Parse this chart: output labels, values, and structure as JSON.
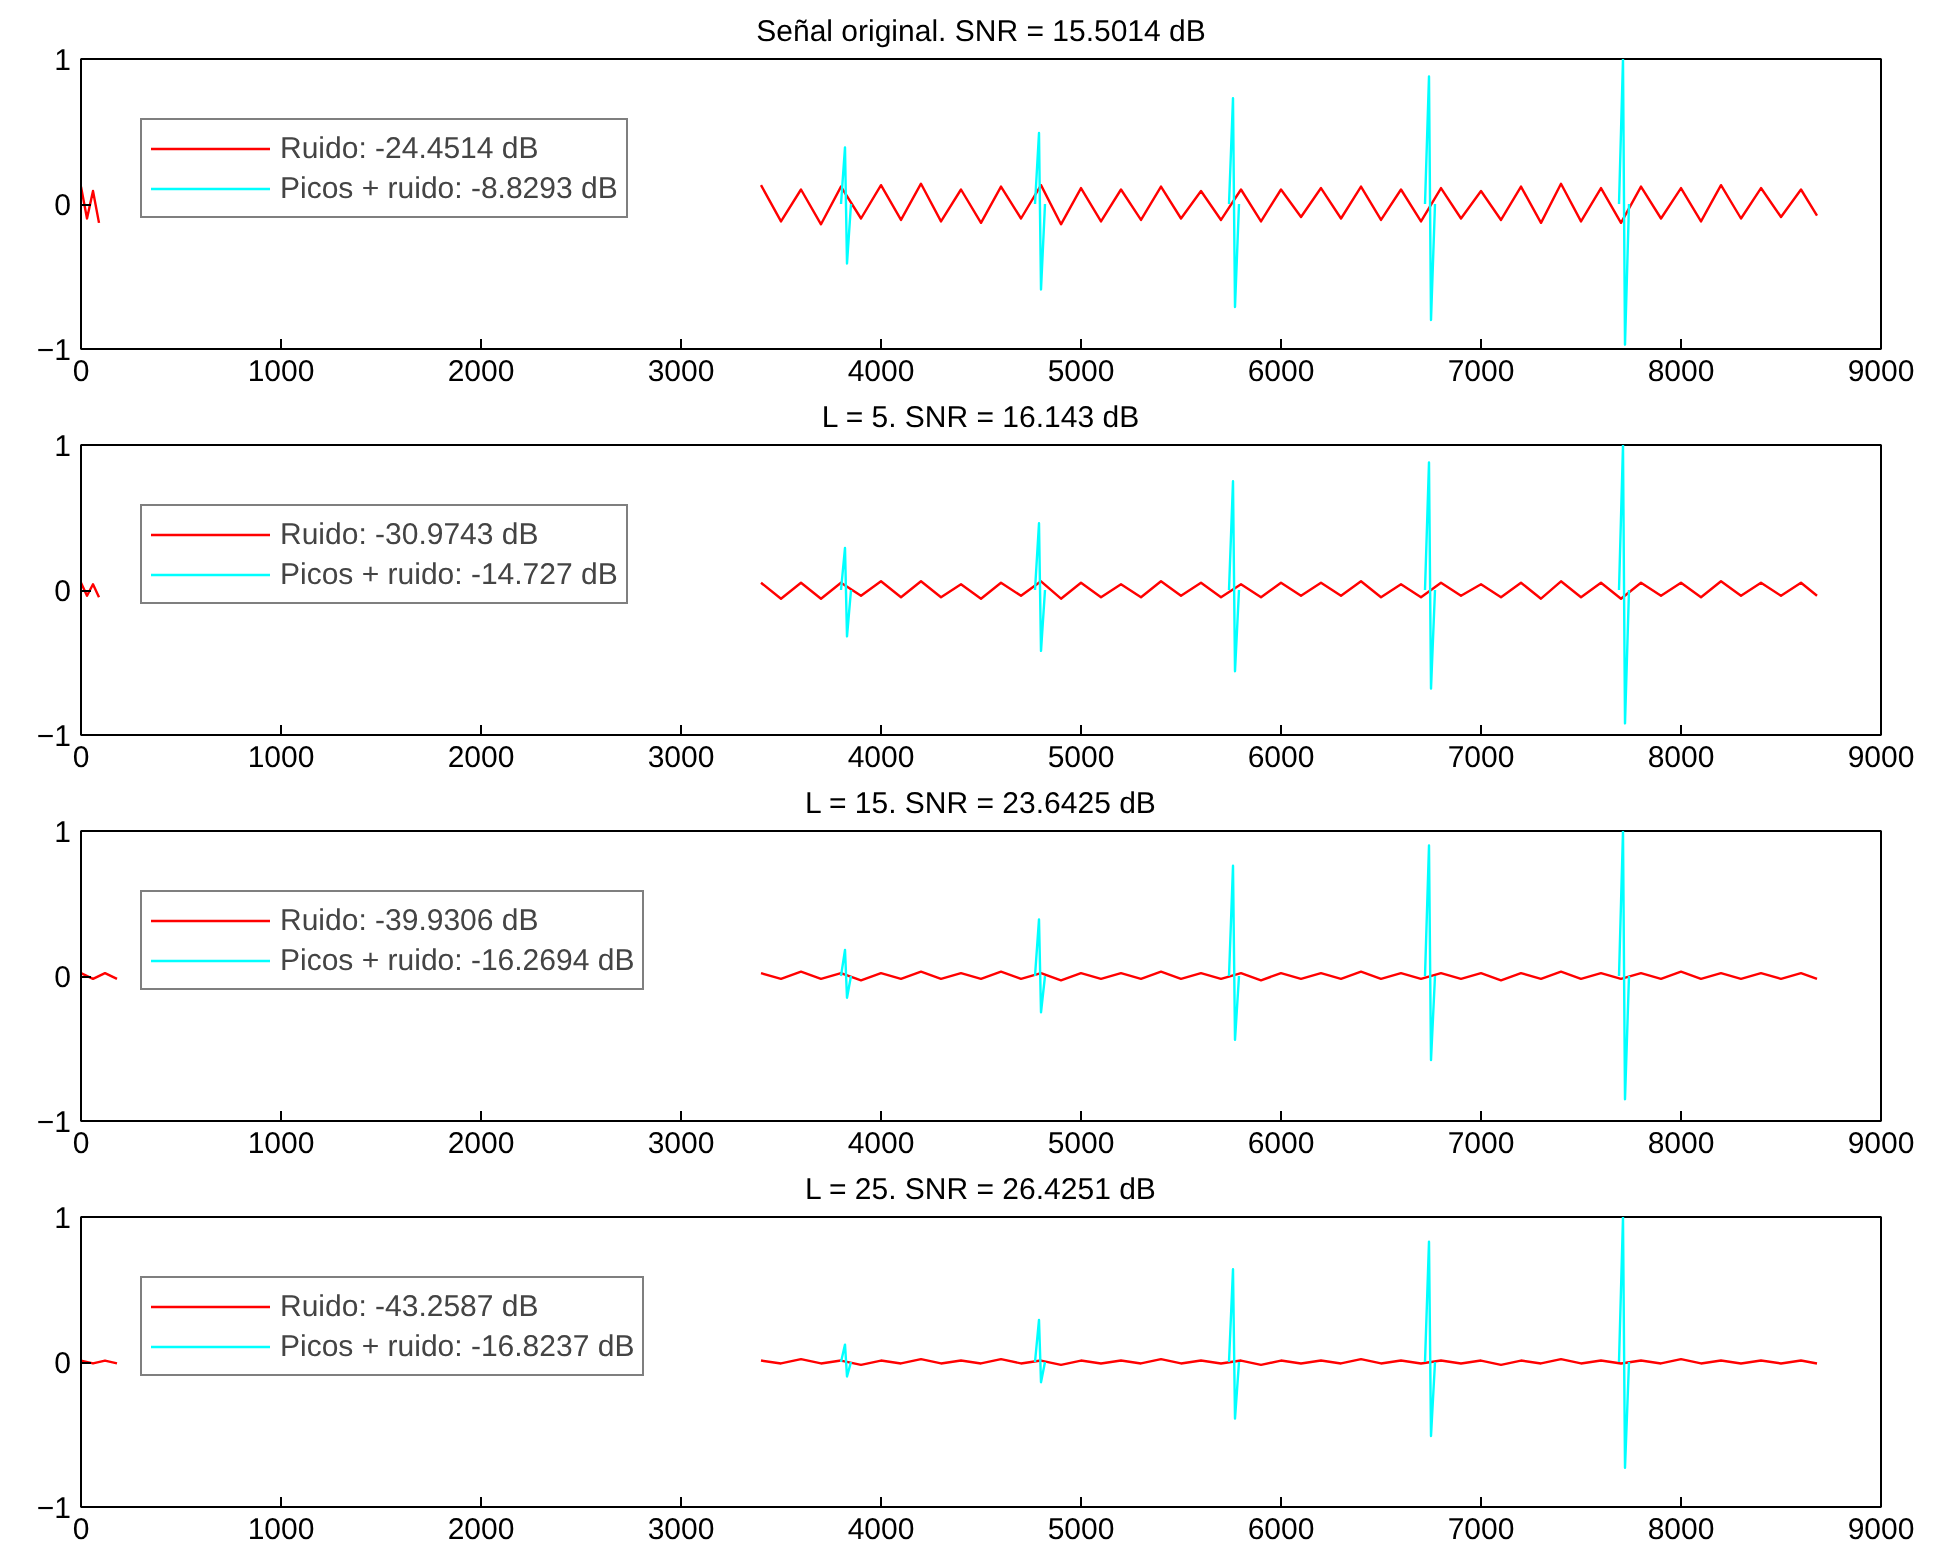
{
  "chart_data": [
    {
      "type": "line",
      "title": "Señal original. SNR = 15.5014 dB",
      "xlim": [
        0,
        9000
      ],
      "xticks": [
        0,
        1000,
        2000,
        3000,
        4000,
        5000,
        6000,
        7000,
        8000,
        9000
      ],
      "ylim": [
        -1,
        1
      ],
      "yticks": [
        -1,
        0,
        1
      ],
      "grid": false,
      "legend": "top left",
      "marker": "none",
      "line_style": "solid",
      "series": [
        {
          "name": "Ruido: -24.4514 dB",
          "color": "#ff0000",
          "x": [
            0,
            30,
            60,
            90,
            120,
            3400,
            3500,
            3600,
            3700,
            3800,
            3900,
            4000,
            4100,
            4200,
            4300,
            4400,
            4500,
            4600,
            4700,
            4800,
            4900,
            5000,
            5100,
            5200,
            5300,
            5400,
            5500,
            5600,
            5700,
            5800,
            5900,
            6000,
            6100,
            6200,
            6300,
            6400,
            6500,
            6600,
            6700,
            6800,
            6900,
            7000,
            7100,
            7200,
            7300,
            7400,
            7500,
            7600,
            7700,
            7800,
            7900,
            8000,
            8100,
            8200,
            8300,
            8400,
            8500,
            8600,
            8680
          ],
          "values": [
            0.12,
            -0.1,
            0.09,
            -0.13,
            null,
            0.13,
            -0.12,
            0.1,
            -0.14,
            0.12,
            -0.1,
            0.13,
            -0.11,
            0.14,
            -0.12,
            0.1,
            -0.13,
            0.12,
            -0.1,
            0.13,
            -0.14,
            0.11,
            -0.12,
            0.1,
            -0.11,
            0.12,
            -0.1,
            0.09,
            -0.11,
            0.1,
            -0.12,
            0.1,
            -0.09,
            0.11,
            -0.1,
            0.12,
            -0.11,
            0.1,
            -0.12,
            0.11,
            -0.1,
            0.09,
            -0.11,
            0.12,
            -0.13,
            0.14,
            -0.12,
            0.11,
            -0.13,
            0.12,
            -0.1,
            0.11,
            -0.12,
            0.13,
            -0.1,
            0.11,
            -0.09,
            0.1,
            -0.08
          ]
        },
        {
          "name": "Picos + ruido: -8.8293 dB",
          "color": "#00ffff",
          "x": [
            3800,
            3820,
            3830,
            3850,
            3900,
            4770,
            4790,
            4800,
            4820,
            4870,
            5740,
            5760,
            5770,
            5790,
            5840,
            6720,
            6740,
            6750,
            6770,
            6820,
            7690,
            7710,
            7720,
            7740
          ],
          "values": [
            0,
            0.39,
            -0.41,
            0,
            null,
            0,
            0.49,
            -0.59,
            0,
            null,
            0,
            0.73,
            -0.71,
            0,
            null,
            0,
            0.88,
            -0.8,
            0,
            null,
            0,
            1.0,
            -0.97,
            0
          ]
        }
      ]
    },
    {
      "type": "line",
      "title": "L = 5. SNR = 16.143 dB",
      "xlim": [
        0,
        9000
      ],
      "xticks": [
        0,
        1000,
        2000,
        3000,
        4000,
        5000,
        6000,
        7000,
        8000,
        9000
      ],
      "ylim": [
        -1,
        1
      ],
      "yticks": [
        -1,
        0,
        1
      ],
      "grid": false,
      "legend": "top left",
      "marker": "none",
      "line_style": "solid",
      "series": [
        {
          "name": "Ruido: -30.9743 dB",
          "color": "#ff0000",
          "x": [
            0,
            30,
            60,
            90,
            120,
            3400,
            3500,
            3600,
            3700,
            3800,
            3900,
            4000,
            4100,
            4200,
            4300,
            4400,
            4500,
            4600,
            4700,
            4800,
            4900,
            5000,
            5100,
            5200,
            5300,
            5400,
            5500,
            5600,
            5700,
            5800,
            5900,
            6000,
            6100,
            6200,
            6300,
            6400,
            6500,
            6600,
            6700,
            6800,
            6900,
            7000,
            7100,
            7200,
            7300,
            7400,
            7500,
            7600,
            7700,
            7800,
            7900,
            8000,
            8100,
            8200,
            8300,
            8400,
            8500,
            8600,
            8680
          ],
          "values": [
            0.05,
            -0.04,
            0.04,
            -0.05,
            null,
            0.05,
            -0.06,
            0.05,
            -0.06,
            0.05,
            -0.04,
            0.06,
            -0.05,
            0.06,
            -0.05,
            0.04,
            -0.06,
            0.05,
            -0.04,
            0.06,
            -0.06,
            0.05,
            -0.05,
            0.04,
            -0.05,
            0.06,
            -0.04,
            0.05,
            -0.05,
            0.04,
            -0.05,
            0.05,
            -0.04,
            0.05,
            -0.04,
            0.06,
            -0.05,
            0.04,
            -0.05,
            0.05,
            -0.04,
            0.04,
            -0.05,
            0.05,
            -0.06,
            0.06,
            -0.05,
            0.05,
            -0.06,
            0.05,
            -0.04,
            0.05,
            -0.05,
            0.06,
            -0.04,
            0.05,
            -0.04,
            0.05,
            -0.04
          ]
        },
        {
          "name": "Picos + ruido: -14.727 dB",
          "color": "#00ffff",
          "x": [
            3800,
            3820,
            3830,
            3850,
            3900,
            4770,
            4790,
            4800,
            4820,
            4870,
            5740,
            5760,
            5770,
            5790,
            5840,
            6720,
            6740,
            6750,
            6770,
            6820,
            7690,
            7710,
            7720,
            7740
          ],
          "values": [
            0,
            0.29,
            -0.32,
            0,
            null,
            0,
            0.46,
            -0.42,
            0,
            null,
            0,
            0.75,
            -0.56,
            0,
            null,
            0,
            0.88,
            -0.68,
            0,
            null,
            0,
            1.0,
            -0.92,
            0
          ]
        }
      ]
    },
    {
      "type": "line",
      "title": "L = 15. SNR = 23.6425 dB",
      "xlim": [
        0,
        9000
      ],
      "xticks": [
        0,
        1000,
        2000,
        3000,
        4000,
        5000,
        6000,
        7000,
        8000,
        9000
      ],
      "ylim": [
        -1,
        1
      ],
      "yticks": [
        -1,
        0,
        1
      ],
      "grid": false,
      "legend": "top left",
      "marker": "none",
      "line_style": "solid",
      "series": [
        {
          "name": "Ruido: -39.9306 dB",
          "color": "#ff0000",
          "x": [
            0,
            60,
            120,
            180,
            240,
            3400,
            3500,
            3600,
            3700,
            3800,
            3900,
            4000,
            4100,
            4200,
            4300,
            4400,
            4500,
            4600,
            4700,
            4800,
            4900,
            5000,
            5100,
            5200,
            5300,
            5400,
            5500,
            5600,
            5700,
            5800,
            5900,
            6000,
            6100,
            6200,
            6300,
            6400,
            6500,
            6600,
            6700,
            6800,
            6900,
            7000,
            7100,
            7200,
            7300,
            7400,
            7500,
            7600,
            7700,
            7800,
            7900,
            8000,
            8100,
            8200,
            8300,
            8400,
            8500,
            8600,
            8680
          ],
          "values": [
            0.02,
            -0.02,
            0.02,
            -0.02,
            null,
            0.02,
            -0.02,
            0.03,
            -0.02,
            0.02,
            -0.03,
            0.02,
            -0.02,
            0.03,
            -0.02,
            0.02,
            -0.02,
            0.03,
            -0.02,
            0.02,
            -0.03,
            0.02,
            -0.02,
            0.02,
            -0.02,
            0.03,
            -0.02,
            0.02,
            -0.02,
            0.02,
            -0.03,
            0.02,
            -0.02,
            0.02,
            -0.02,
            0.03,
            -0.02,
            0.02,
            -0.02,
            0.02,
            -0.02,
            0.02,
            -0.03,
            0.02,
            -0.02,
            0.03,
            -0.02,
            0.02,
            -0.02,
            0.02,
            -0.02,
            0.03,
            -0.02,
            0.02,
            -0.02,
            0.02,
            -0.02,
            0.02,
            -0.02
          ]
        },
        {
          "name": "Picos + ruido: -16.2694 dB",
          "color": "#00ffff",
          "x": [
            3800,
            3820,
            3830,
            3850,
            3900,
            4770,
            4790,
            4800,
            4820,
            4870,
            5740,
            5760,
            5770,
            5790,
            5840,
            6720,
            6740,
            6750,
            6770,
            6820,
            7690,
            7710,
            7720,
            7740
          ],
          "values": [
            0,
            0.18,
            -0.15,
            0,
            null,
            0,
            0.39,
            -0.25,
            0,
            null,
            0,
            0.76,
            -0.44,
            0,
            null,
            0,
            0.9,
            -0.58,
            0,
            null,
            0,
            1.0,
            -0.85,
            0
          ]
        }
      ]
    },
    {
      "type": "line",
      "title": "L = 25. SNR = 26.4251 dB",
      "xlim": [
        0,
        9000
      ],
      "xticks": [
        0,
        1000,
        2000,
        3000,
        4000,
        5000,
        6000,
        7000,
        8000,
        9000
      ],
      "ylim": [
        -1,
        1
      ],
      "yticks": [
        -1,
        0,
        1
      ],
      "grid": false,
      "legend": "top left",
      "marker": "none",
      "line_style": "solid",
      "series": [
        {
          "name": "Ruido: -43.2587 dB",
          "color": "#ff0000",
          "x": [
            0,
            60,
            120,
            180,
            240,
            3400,
            3500,
            3600,
            3700,
            3800,
            3900,
            4000,
            4100,
            4200,
            4300,
            4400,
            4500,
            4600,
            4700,
            4800,
            4900,
            5000,
            5100,
            5200,
            5300,
            5400,
            5500,
            5600,
            5700,
            5800,
            5900,
            6000,
            6100,
            6200,
            6300,
            6400,
            6500,
            6600,
            6700,
            6800,
            6900,
            7000,
            7100,
            7200,
            7300,
            7400,
            7500,
            7600,
            7700,
            7800,
            7900,
            8000,
            8100,
            8200,
            8300,
            8400,
            8500,
            8600,
            8680
          ],
          "values": [
            0.01,
            -0.01,
            0.01,
            -0.01,
            null,
            0.01,
            -0.01,
            0.02,
            -0.01,
            0.01,
            -0.02,
            0.01,
            -0.01,
            0.02,
            -0.01,
            0.01,
            -0.01,
            0.02,
            -0.01,
            0.01,
            -0.02,
            0.01,
            -0.01,
            0.01,
            -0.01,
            0.02,
            -0.01,
            0.01,
            -0.01,
            0.01,
            -0.02,
            0.01,
            -0.01,
            0.01,
            -0.01,
            0.02,
            -0.01,
            0.01,
            -0.01,
            0.01,
            -0.01,
            0.01,
            -0.02,
            0.01,
            -0.01,
            0.02,
            -0.01,
            0.01,
            -0.01,
            0.01,
            -0.01,
            0.02,
            -0.01,
            0.01,
            -0.01,
            0.01,
            -0.01,
            0.01,
            -0.01
          ]
        },
        {
          "name": "Picos + ruido: -16.8237 dB",
          "color": "#00ffff",
          "x": [
            3800,
            3820,
            3830,
            3850,
            3900,
            4770,
            4790,
            4800,
            4820,
            4870,
            5740,
            5760,
            5770,
            5790,
            5840,
            6720,
            6740,
            6750,
            6770,
            6820,
            7690,
            7710,
            7720,
            7740
          ],
          "values": [
            0,
            0.12,
            -0.1,
            0,
            null,
            0,
            0.29,
            -0.14,
            0,
            null,
            0,
            0.64,
            -0.39,
            0,
            null,
            0,
            0.83,
            -0.51,
            0,
            null,
            0,
            1.0,
            -0.73,
            0
          ]
        }
      ]
    }
  ]
}
